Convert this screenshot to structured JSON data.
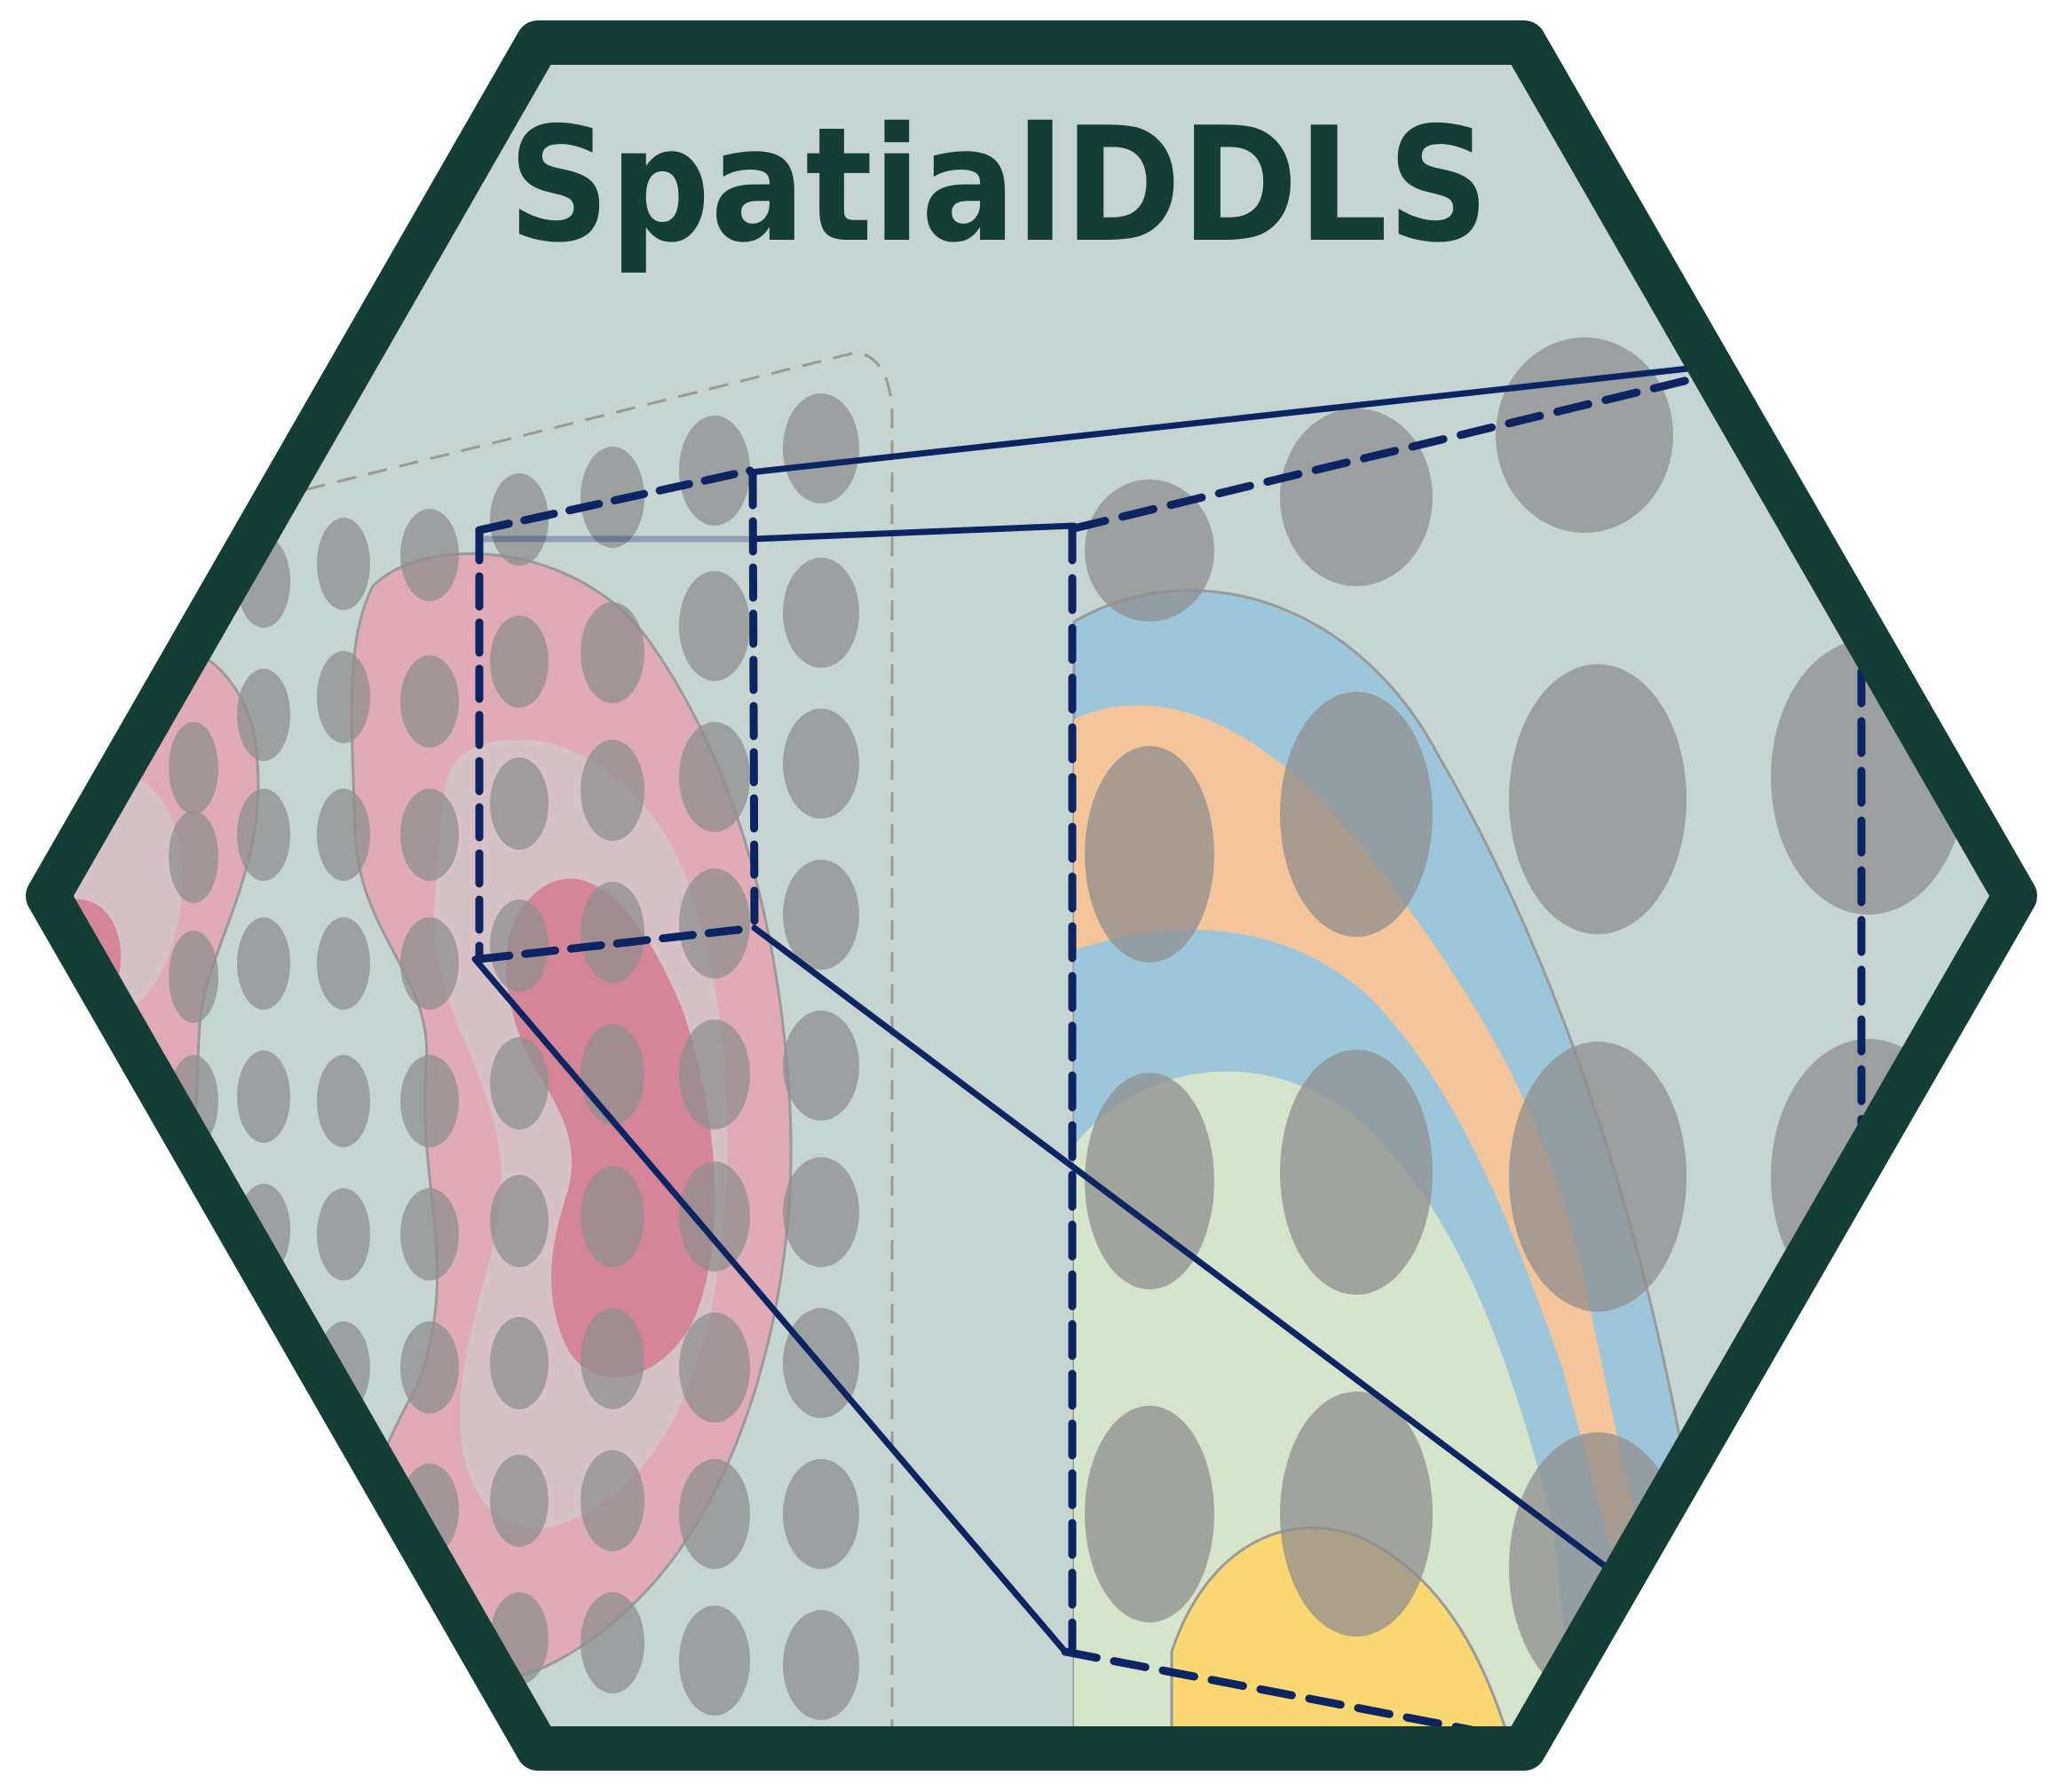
{
  "title": "SpatialDDLS",
  "colors": {
    "hex_border": "#143d35",
    "hex_fill": "#c6d4d2",
    "spot": "#8f8f8f",
    "tissue_pink_outer": "#e0aab7",
    "tissue_pink_inner": "#d6c2c6",
    "tissue_pink_core": "#d58598",
    "zoom_line": "#0c2461",
    "layer_blue": "#9ec6da",
    "layer_orange": "#f4c49a",
    "layer_green": "#d6e4cc",
    "layer_yellow": "#f9d873"
  },
  "icons": [
    "hexagon-badge-icon",
    "spatial-spot-grid-icon",
    "tissue-region-icon",
    "zoom-inset-icon",
    "cell-layer-icon"
  ]
}
